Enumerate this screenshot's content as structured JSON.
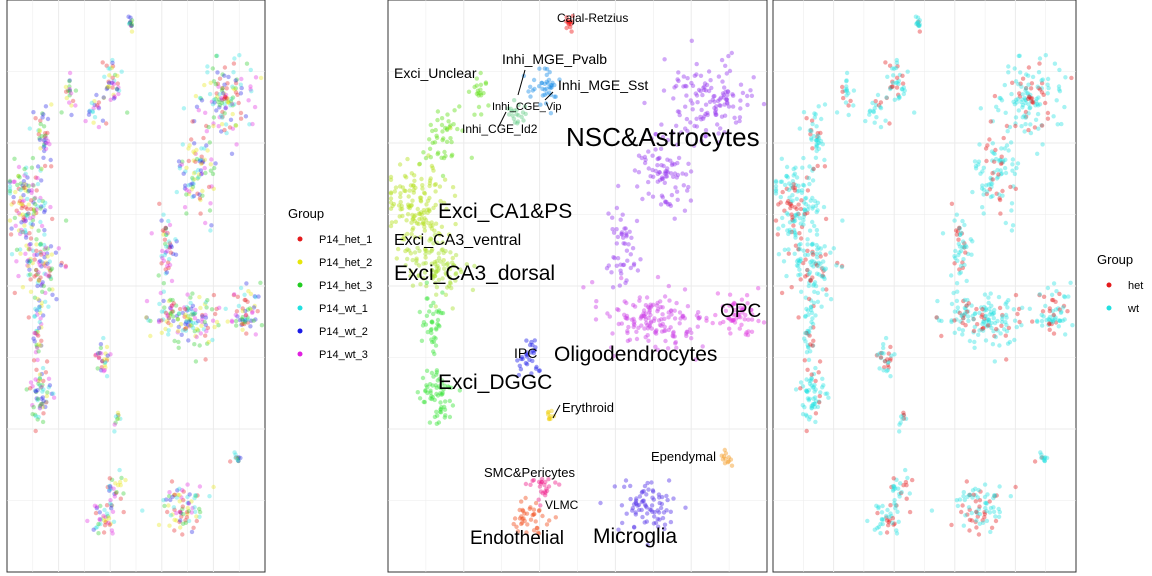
{
  "colors": {
    "P14_het_1": "#e41a1c",
    "P14_het_2": "#e6e60a",
    "P14_het_3": "#22cc22",
    "P14_wt_1": "#22e0e0",
    "P14_wt_2": "#1a1ae6",
    "P14_wt_3": "#e020e0",
    "het": "#e41a1c",
    "wt": "#22e0e0",
    "grid": "#ebebeb",
    "frame": "#333333"
  },
  "chart_data": [
    {
      "type": "scatter",
      "panel": "samples",
      "legend": {
        "title": "Group",
        "placement": "right",
        "entries": [
          "P14_het_1",
          "P14_het_2",
          "P14_het_3",
          "P14_wt_1",
          "P14_wt_2",
          "P14_wt_3"
        ]
      },
      "grid": true
    },
    {
      "type": "scatter",
      "panel": "clusters",
      "grid": true,
      "clusters": [
        {
          "name": "Cajal-Retzius",
          "color": "#f01818"
        },
        {
          "name": "Exci_Unclear",
          "color": "#66e020"
        },
        {
          "name": "Inhi_MGE_Pvalb",
          "color": "#2090e8"
        },
        {
          "name": "Inhi_MGE_Sst",
          "color": "#2c7ce8"
        },
        {
          "name": "Inhi_CGE_Vip",
          "color": "#30a8e8"
        },
        {
          "name": "Inhi_CGE_Id2",
          "color": "#66cc88"
        },
        {
          "name": "NSC&Astrocytes",
          "color": "#9a3ef0"
        },
        {
          "name": "Exci_CA1&PS",
          "color": "#b4e01c"
        },
        {
          "name": "Exci_CA3_ventral",
          "color": "#c8e41a"
        },
        {
          "name": "Exci_CA3_dorsal",
          "color": "#a8e030"
        },
        {
          "name": "OPC",
          "color": "#e03ce0"
        },
        {
          "name": "IPC",
          "color": "#2222e8"
        },
        {
          "name": "Oligodendrocytes",
          "color": "#cc40e6"
        },
        {
          "name": "Exci_DGGC",
          "color": "#3ce43c"
        },
        {
          "name": "Erythroid",
          "color": "#f0d010"
        },
        {
          "name": "Ependymal",
          "color": "#f59a20"
        },
        {
          "name": "SMC&Pericytes",
          "color": "#f0208c"
        },
        {
          "name": "VLMC",
          "color": "#f04060"
        },
        {
          "name": "Endothelial",
          "color": "#f24f1e"
        },
        {
          "name": "Microglia",
          "color": "#5533e8"
        }
      ]
    },
    {
      "type": "scatter",
      "panel": "condition",
      "legend": {
        "title": "Group",
        "placement": "right",
        "entries": [
          "het",
          "wt"
        ]
      },
      "grid": true
    }
  ]
}
